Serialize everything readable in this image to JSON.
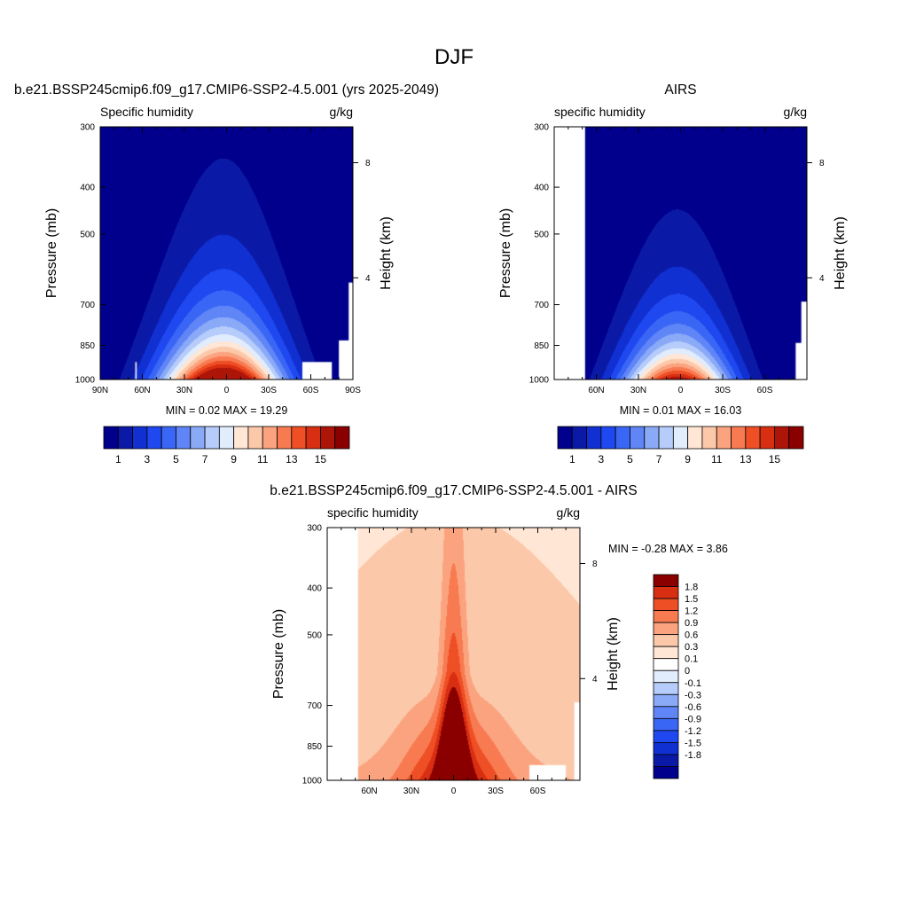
{
  "figure": {
    "title": "DJF"
  },
  "chart_data": [
    {
      "type": "contour",
      "id": "model",
      "title": "b.e21.BSSP245cmip6.f09_g17.CMIP6-SSP2-4.5.001 (yrs 2025-2049)",
      "left_label": "Specific humidity",
      "right_label": "g/kg",
      "ylabel": "Pressure (mb)",
      "ylabel_right": "Height (km)",
      "x_range": [
        90,
        -90
      ],
      "y_range": [
        300,
        1000
      ],
      "y_log": true,
      "x_ticks": [
        {
          "v": 90,
          "label": "90N"
        },
        {
          "v": 60,
          "label": "60N"
        },
        {
          "v": 30,
          "label": "30N"
        },
        {
          "v": 0,
          "label": "0"
        },
        {
          "v": -30,
          "label": "30S"
        },
        {
          "v": -60,
          "label": "60S"
        },
        {
          "v": -90,
          "label": "90S"
        }
      ],
      "y_ticks": [
        {
          "v": 300,
          "label": "300"
        },
        {
          "v": 400,
          "label": "400"
        },
        {
          "v": 500,
          "label": "500"
        },
        {
          "v": 700,
          "label": "700"
        },
        {
          "v": 850,
          "label": "850"
        },
        {
          "v": 1000,
          "label": "1000"
        }
      ],
      "height_ticks": [
        {
          "p": 356,
          "label": "8"
        },
        {
          "p": 616,
          "label": "4"
        }
      ],
      "stats": {
        "min_label": "MIN =",
        "min": "0.02",
        "max_label": "MAX =",
        "max": "19.29"
      },
      "levels": [
        1,
        2,
        3,
        4,
        5,
        6,
        7,
        8,
        9,
        10,
        11,
        12,
        13,
        14,
        15
      ],
      "colorbar": {
        "labels": [
          "1",
          "3",
          "5",
          "7",
          "9",
          "11",
          "13",
          "15"
        ]
      },
      "peak": 19.29,
      "lat0": 2,
      "widthN": 32,
      "widthS": 30,
      "scale_p": 220,
      "background": 0.3,
      "masks": [
        {
          "lat": [
            -54,
            -75
          ],
          "p": [
            920,
            1000
          ]
        },
        {
          "lat": [
            -87,
            -90
          ],
          "p": [
            630,
            1000
          ]
        },
        {
          "lat": [
            -80,
            -90
          ],
          "p": [
            830,
            1000
          ]
        },
        {
          "lat": [
            65,
            64
          ],
          "p": [
            920,
            1000
          ]
        }
      ]
    },
    {
      "type": "contour",
      "id": "obs",
      "title": "AIRS",
      "left_label": "specific humidity",
      "right_label": "g/kg",
      "ylabel": "Pressure (mb)",
      "ylabel_right": "Height (km)",
      "x_range": [
        90,
        -90
      ],
      "y_range": [
        300,
        1000
      ],
      "y_log": true,
      "x_ticks": [
        {
          "v": 60,
          "label": "60N"
        },
        {
          "v": 30,
          "label": "30N"
        },
        {
          "v": 0,
          "label": "0"
        },
        {
          "v": -30,
          "label": "30S"
        },
        {
          "v": -60,
          "label": "60S"
        }
      ],
      "y_ticks": [
        {
          "v": 300,
          "label": "300"
        },
        {
          "v": 400,
          "label": "400"
        },
        {
          "v": 500,
          "label": "500"
        },
        {
          "v": 700,
          "label": "700"
        },
        {
          "v": 850,
          "label": "850"
        },
        {
          "v": 1000,
          "label": "1000"
        }
      ],
      "height_ticks": [
        {
          "p": 356,
          "label": "8"
        },
        {
          "p": 616,
          "label": "4"
        }
      ],
      "stats": {
        "min_label": "MIN =",
        "min": "0.01",
        "max_label": "MAX =",
        "max": "16.03"
      },
      "levels": [
        1,
        2,
        3,
        4,
        5,
        6,
        7,
        8,
        9,
        10,
        11,
        12,
        13,
        14,
        15
      ],
      "colorbar": {
        "labels": [
          "1",
          "3",
          "5",
          "7",
          "9",
          "11",
          "13",
          "15"
        ]
      },
      "peak": 16.03,
      "lat0": 2,
      "widthN": 28,
      "widthS": 27,
      "scale_p": 200,
      "background": 0.3,
      "masks": [
        {
          "lat": [
            90,
            68
          ],
          "p": [
            300,
            1000
          ]
        },
        {
          "lat": [
            -86,
            -90
          ],
          "p": [
            690,
            1000
          ]
        },
        {
          "lat": [
            -82,
            -90
          ],
          "p": [
            840,
            1000
          ]
        }
      ]
    },
    {
      "type": "contour",
      "id": "diff",
      "title": "b.e21.BSSP245cmip6.f09_g17.CMIP6-SSP2-4.5.001 - AIRS",
      "left_label": "specific humidity",
      "right_label": "g/kg",
      "ylabel": "Pressure (mb)",
      "ylabel_right": "Height (km)",
      "x_range": [
        90,
        -90
      ],
      "y_range": [
        300,
        1000
      ],
      "y_log": true,
      "x_ticks": [
        {
          "v": 60,
          "label": "60N"
        },
        {
          "v": 30,
          "label": "30N"
        },
        {
          "v": 0,
          "label": "0"
        },
        {
          "v": -30,
          "label": "30S"
        },
        {
          "v": -60,
          "label": "60S"
        }
      ],
      "y_ticks": [
        {
          "v": 300,
          "label": "300"
        },
        {
          "v": 400,
          "label": "400"
        },
        {
          "v": 500,
          "label": "500"
        },
        {
          "v": 700,
          "label": "700"
        },
        {
          "v": 850,
          "label": "850"
        },
        {
          "v": 1000,
          "label": "1000"
        }
      ],
      "height_ticks": [
        {
          "p": 356,
          "label": "8"
        },
        {
          "p": 616,
          "label": "4"
        }
      ],
      "stats": {
        "min_label": "MIN =",
        "min": "-0.28",
        "max_label": "MAX =",
        "max": "3.86"
      },
      "levels": [
        -1.8,
        -1.5,
        -1.2,
        -0.9,
        -0.6,
        -0.3,
        -0.1,
        0,
        0.1,
        0.3,
        0.6,
        0.9,
        1.2,
        1.5,
        1.8
      ],
      "colorbar": {
        "labels": [
          "1.8",
          "1.5",
          "1.2",
          "0.9",
          "0.6",
          "0.3",
          "0.1",
          "0",
          "-0.1",
          "-0.3",
          "-0.6",
          "-0.9",
          "-1.2",
          "-1.5",
          "-1.8"
        ]
      },
      "masks": [
        {
          "lat": [
            90,
            68
          ],
          "p": [
            300,
            1000
          ]
        },
        {
          "lat": [
            -86,
            -90
          ],
          "p": [
            690,
            1000
          ]
        },
        {
          "lat": [
            -54,
            -80
          ],
          "p": [
            930,
            1000
          ]
        }
      ]
    }
  ],
  "colors": {
    "spread": [
      "#00008c",
      "#0b1aa6",
      "#1030d2",
      "#1f48f0",
      "#3a66f5",
      "#5f85f7",
      "#8aaaf8",
      "#b6ccfa",
      "#e1ecfd",
      "#ffe6d5",
      "#fcc8aa",
      "#fba37f",
      "#f87a51",
      "#ef4f25",
      "#d82e12",
      "#ad1508",
      "#8a0000"
    ],
    "diff": [
      "#00008c",
      "#0b1aa6",
      "#1030d2",
      "#1f48f0",
      "#3a66f5",
      "#5f85f7",
      "#8aaaf8",
      "#b6ccfa",
      "#e1ecfd",
      "#ffffff",
      "#ffe6d5",
      "#fcc8aa",
      "#fba37f",
      "#f87a51",
      "#ef4f25",
      "#d82e12",
      "#8a0000"
    ]
  }
}
